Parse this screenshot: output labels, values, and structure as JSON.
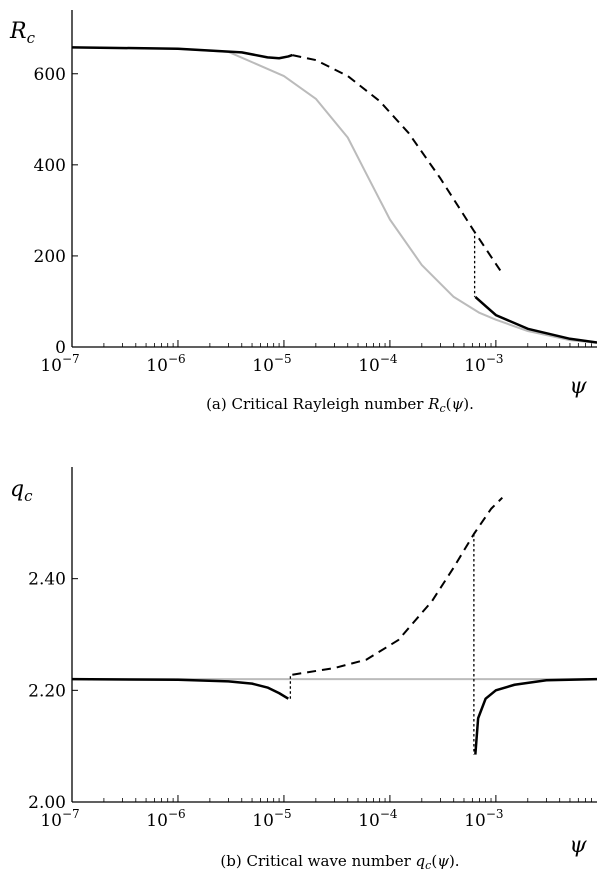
{
  "chart_data": [
    {
      "type": "line",
      "caption": "(a)  Critical Rayleigh number  R_c(ψ).",
      "ylabel": "R_c",
      "xlabel": "ψ",
      "xscale": "log",
      "xlim": [
        1e-07,
        0.009
      ],
      "ylim": [
        0,
        740
      ],
      "x_ticks": [
        {
          "value": 1e-07,
          "base": "10",
          "exp": "−7"
        },
        {
          "value": 1e-06,
          "base": "10",
          "exp": "−6"
        },
        {
          "value": 1e-05,
          "base": "10",
          "exp": "−5"
        },
        {
          "value": 0.0001,
          "base": "10",
          "exp": "−4"
        },
        {
          "value": 0.001,
          "base": "10",
          "exp": "−3"
        }
      ],
      "y_ticks": [
        {
          "value": 0,
          "label": "0"
        },
        {
          "value": 200,
          "label": "200"
        },
        {
          "value": 400,
          "label": "400"
        },
        {
          "value": 600,
          "label": "600"
        }
      ],
      "series": [
        {
          "color": "#bbbbbb",
          "style": "solid",
          "width": 2,
          "points": [
            [
              1e-07,
              658
            ],
            [
              1e-06,
              655
            ],
            [
              3e-06,
              648
            ],
            [
              1e-05,
              595
            ],
            [
              2e-05,
              545
            ],
            [
              4e-05,
              460
            ],
            [
              6e-05,
              380
            ],
            [
              0.0001,
              280
            ],
            [
              0.0002,
              180
            ],
            [
              0.0004,
              110
            ],
            [
              0.0007,
              75
            ],
            [
              0.001,
              60
            ],
            [
              0.002,
              35
            ],
            [
              0.005,
              15
            ],
            [
              0.009,
              9
            ]
          ]
        },
        {
          "color": "#000000",
          "style": "solid",
          "width": 2.5,
          "points": [
            [
              1e-07,
              658
            ],
            [
              1e-06,
              655
            ],
            [
              4e-06,
              647
            ],
            [
              7e-06,
              636
            ],
            [
              9e-06,
              634
            ],
            [
              1.1e-05,
              638
            ],
            [
              1.2e-05,
              641
            ]
          ]
        },
        {
          "color": "#000000",
          "style": "dashed",
          "width": 2,
          "points": [
            [
              1.2e-05,
              641
            ],
            [
              2e-05,
              630
            ],
            [
              4e-05,
              595
            ],
            [
              8e-05,
              540
            ],
            [
              0.00015,
              470
            ],
            [
              0.0003,
              370
            ],
            [
              0.00062,
              255
            ],
            [
              0.0011,
              168
            ]
          ]
        },
        {
          "color": "#000000",
          "style": "dotted",
          "width": 1.3,
          "points": [
            [
              0.00063,
              255
            ],
            [
              0.00063,
              110
            ]
          ]
        },
        {
          "color": "#000000",
          "style": "solid",
          "width": 2.5,
          "points": [
            [
              0.00064,
              110
            ],
            [
              0.0008,
              90
            ],
            [
              0.001,
              70
            ],
            [
              0.002,
              40
            ],
            [
              0.005,
              18
            ],
            [
              0.009,
              10
            ]
          ]
        }
      ]
    },
    {
      "type": "line",
      "caption": "(b)  Critical wave number  q_c(ψ).",
      "ylabel": "q_c",
      "xlabel": "ψ",
      "xscale": "log",
      "xlim": [
        1e-07,
        0.009
      ],
      "ylim": [
        2.0,
        2.6
      ],
      "x_ticks": [
        {
          "value": 1e-07,
          "base": "10",
          "exp": "−7"
        },
        {
          "value": 1e-06,
          "base": "10",
          "exp": "−6"
        },
        {
          "value": 1e-05,
          "base": "10",
          "exp": "−5"
        },
        {
          "value": 0.0001,
          "base": "10",
          "exp": "−4"
        },
        {
          "value": 0.001,
          "base": "10",
          "exp": "−3"
        }
      ],
      "y_ticks": [
        {
          "value": 2.0,
          "label": "2.00"
        },
        {
          "value": 2.2,
          "label": "2.20"
        },
        {
          "value": 2.4,
          "label": "2.40"
        }
      ],
      "series": [
        {
          "color": "#bbbbbb",
          "style": "solid",
          "width": 2,
          "points": [
            [
              1e-07,
              2.22
            ],
            [
              0.009,
              2.22
            ]
          ]
        },
        {
          "color": "#000000",
          "style": "solid",
          "width": 2.5,
          "points": [
            [
              1e-07,
              2.22
            ],
            [
              1e-06,
              2.219
            ],
            [
              3e-06,
              2.216
            ],
            [
              5e-06,
              2.212
            ],
            [
              7e-06,
              2.205
            ],
            [
              9e-06,
              2.195
            ],
            [
              1.1e-05,
              2.185
            ]
          ]
        },
        {
          "color": "#000000",
          "style": "dotted",
          "width": 1.3,
          "points": [
            [
              1.15e-05,
              2.185
            ],
            [
              1.15e-05,
              2.228
            ]
          ]
        },
        {
          "color": "#000000",
          "style": "dashed",
          "width": 2,
          "points": [
            [
              1.2e-05,
              2.228
            ],
            [
              3e-05,
              2.24
            ],
            [
              6e-05,
              2.255
            ],
            [
              0.00012,
              2.29
            ],
            [
              0.00025,
              2.36
            ],
            [
              0.0004,
              2.42
            ],
            [
              0.00062,
              2.48
            ],
            [
              0.0009,
              2.525
            ],
            [
              0.00115,
              2.545
            ]
          ]
        },
        {
          "color": "#000000",
          "style": "dotted",
          "width": 1.3,
          "points": [
            [
              0.00062,
              2.48
            ],
            [
              0.00062,
              2.085
            ]
          ]
        },
        {
          "color": "#000000",
          "style": "solid",
          "width": 2.5,
          "points": [
            [
              0.00064,
              2.085
            ],
            [
              0.00068,
              2.15
            ],
            [
              0.0008,
              2.185
            ],
            [
              0.001,
              2.2
            ],
            [
              0.0015,
              2.21
            ],
            [
              0.003,
              2.218
            ],
            [
              0.009,
              2.22
            ]
          ]
        }
      ]
    }
  ]
}
